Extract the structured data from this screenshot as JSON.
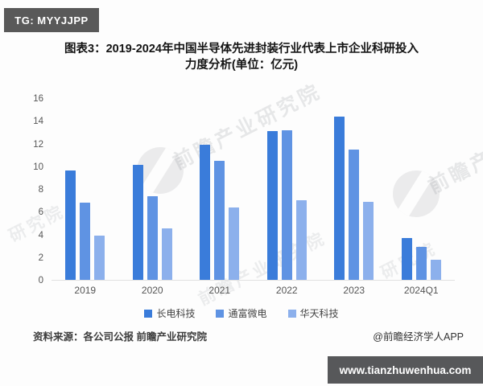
{
  "header": {
    "tg_badge": "TG: MYYJJPP"
  },
  "title": {
    "line1": "图表3：2019-2024年中国半导体先进封装行业代表上市企业科研投入",
    "line2": "力度分析(单位：亿元)"
  },
  "chart_data": {
    "type": "bar",
    "categories": [
      "2019",
      "2020",
      "2021",
      "2022",
      "2023",
      "2024Q1"
    ],
    "series": [
      {
        "name": "长电科技",
        "color": "#3a7cda",
        "values": [
          9.6,
          10.1,
          11.9,
          13.1,
          14.4,
          3.7
        ]
      },
      {
        "name": "通富微电",
        "color": "#5f93e3",
        "values": [
          6.8,
          7.4,
          10.5,
          13.2,
          11.5,
          2.9
        ]
      },
      {
        "name": "华天科技",
        "color": "#8cb0ec",
        "values": [
          3.9,
          4.5,
          6.4,
          7.0,
          6.9,
          1.8
        ]
      }
    ],
    "title": "2019-2024年中国半导体先进封装行业代表上市企业科研投入力度分析",
    "unit": "亿元",
    "xlabel": "",
    "ylabel": "",
    "ylim": [
      0,
      16
    ],
    "ytick_step": 2,
    "grid": false,
    "legend_position": "bottom"
  },
  "watermark": {
    "text": "前瞻产业研究院",
    "partial": "研究院"
  },
  "footer": {
    "source": "资料来源：各公司公报 前瞻产业研究院",
    "credit": "@前瞻经济学人APP",
    "site": "www.tianzhuwenhua.com"
  },
  "colors": {
    "badge_bg": "#595959",
    "banner_bg": "#57585a",
    "axis_line": "#e0e0e0",
    "tick_text": "#555555"
  }
}
